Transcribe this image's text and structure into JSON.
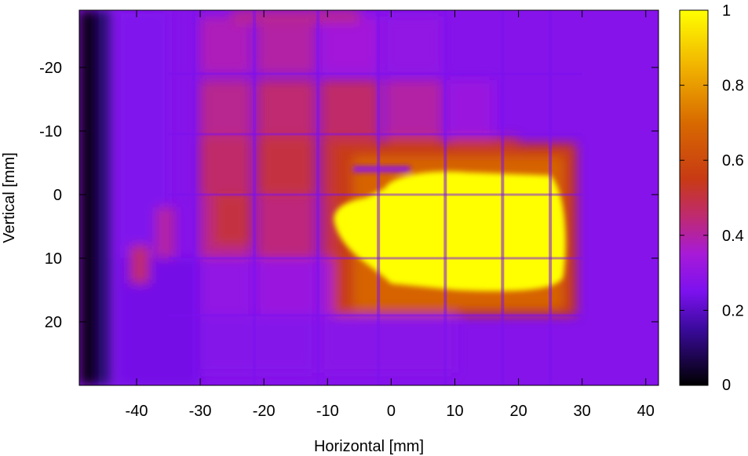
{
  "chart_data": {
    "type": "heatmap",
    "title": "",
    "xlabel": "Horizontal [mm]",
    "ylabel": "Vertical [mm]",
    "xlim": [
      -49,
      42
    ],
    "ylim": [
      -29,
      30
    ],
    "y_axis_inverted": true,
    "xticks": [
      -40,
      -30,
      -20,
      -10,
      0,
      10,
      20,
      30,
      40
    ],
    "yticks": [
      -20,
      -10,
      0,
      10,
      20
    ],
    "xtick_labels": [
      "-40",
      "-30",
      "-20",
      "-10",
      "0",
      "10",
      "20",
      "30",
      "40"
    ],
    "ytick_labels": [
      "-20",
      "-10",
      "0",
      "10",
      "20"
    ],
    "colorbar": {
      "range": [
        0,
        1
      ],
      "ticks": [
        0,
        0.2,
        0.4,
        0.6,
        0.8,
        1
      ],
      "tick_labels": [
        "0",
        "0.2",
        "0.4",
        "0.6",
        "0.8",
        "1"
      ],
      "colormap": "gnuplot-pm3d-black-purple-red-yellow",
      "stops": [
        {
          "v": 0.0,
          "color": "#000000"
        },
        {
          "v": 0.15,
          "color": "#3a0a9c"
        },
        {
          "v": 0.25,
          "color": "#7c11ef"
        },
        {
          "v": 0.35,
          "color": "#a71ad8"
        },
        {
          "v": 0.45,
          "color": "#bf2a70"
        },
        {
          "v": 0.55,
          "color": "#c83a14"
        },
        {
          "v": 0.7,
          "color": "#d86a00"
        },
        {
          "v": 0.85,
          "color": "#f1b300"
        },
        {
          "v": 1.0,
          "color": "#ffff00"
        }
      ]
    },
    "grid": false,
    "legend": "none",
    "intensity_regions": [
      {
        "desc": "background",
        "value": 0.27
      },
      {
        "desc": "dark left edge",
        "x": [
          -49,
          -45
        ],
        "y": [
          -29,
          30
        ],
        "value": 0.02
      },
      {
        "desc": "upper-left reddish blocks",
        "x": [
          -30,
          -10
        ],
        "y": [
          -28,
          8
        ],
        "value": 0.45
      },
      {
        "desc": "central bright beam",
        "x": [
          -10,
          27
        ],
        "y": [
          -3,
          15
        ],
        "value": 1.0
      },
      {
        "desc": "orange halo",
        "x": [
          -8,
          29
        ],
        "y": [
          -8,
          19
        ],
        "value": 0.62
      }
    ]
  }
}
